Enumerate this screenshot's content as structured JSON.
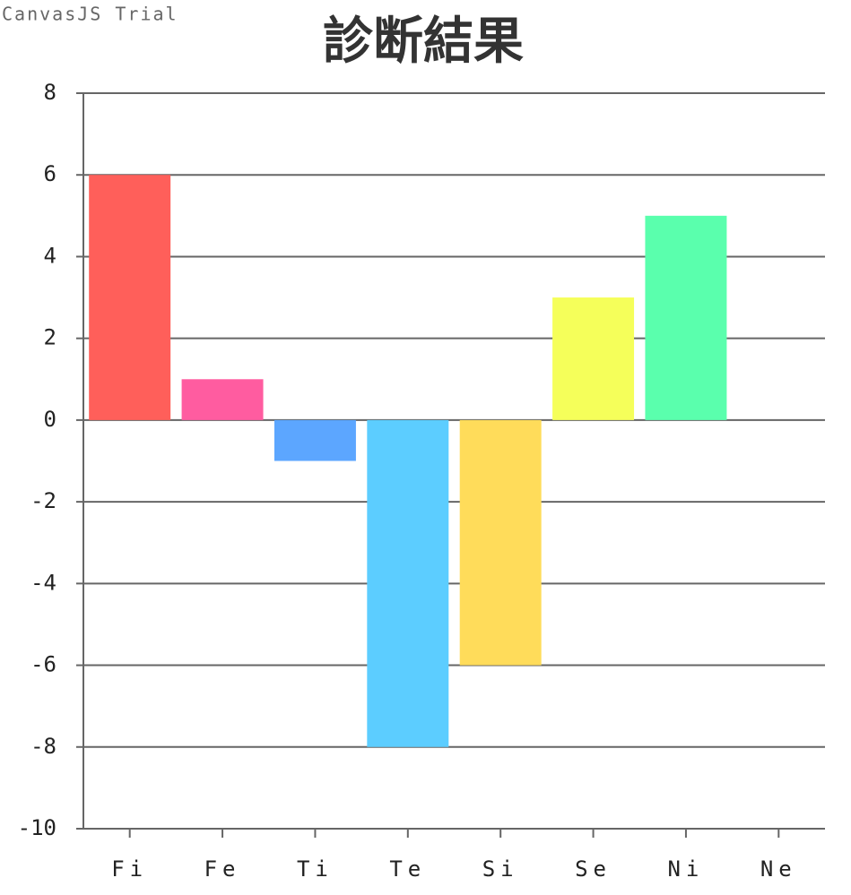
{
  "chart_data": {
    "type": "bar",
    "title": "診断結果",
    "watermark": "CanvasJS Trial",
    "categories": [
      "Fi",
      "Fe",
      "Ti",
      "Te",
      "Si",
      "Se",
      "Ni",
      "Ne"
    ],
    "values": [
      6,
      1,
      -1,
      -8,
      -6,
      3,
      5,
      0
    ],
    "colors": [
      "#ff5f5a",
      "#ff5ca0",
      "#5ca6ff",
      "#5ccdff",
      "#ffdc5a",
      "#f5ff5a",
      "#5affad",
      "#c85aff"
    ],
    "ylim": [
      -10,
      8
    ],
    "yticks": [
      -10,
      -8,
      -6,
      -4,
      -2,
      0,
      2,
      4,
      6,
      8
    ],
    "grid": true
  }
}
